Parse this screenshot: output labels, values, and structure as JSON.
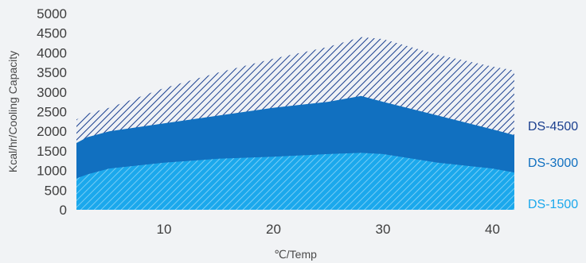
{
  "chart_data": {
    "type": "area",
    "xlabel": "℃/Temp",
    "ylabel": "Kcal/hr/Cooling Capacity",
    "xlim": [
      2,
      42
    ],
    "ylim": [
      0,
      5000
    ],
    "x_ticks": [
      10,
      20,
      30,
      40
    ],
    "y_ticks": [
      0,
      500,
      1000,
      1500,
      2000,
      2500,
      3000,
      3500,
      4000,
      4500,
      5000
    ],
    "grid": false,
    "legend_position": "right",
    "series": [
      {
        "name": "DS-4500",
        "color": "#1a3f8f",
        "fill": "hatched",
        "points": [
          [
            2,
            2300
          ],
          [
            3,
            2450
          ],
          [
            5,
            2600
          ],
          [
            10,
            3100
          ],
          [
            15,
            3500
          ],
          [
            20,
            3850
          ],
          [
            25,
            4150
          ],
          [
            28,
            4400
          ],
          [
            30,
            4350
          ],
          [
            35,
            3950
          ],
          [
            40,
            3650
          ],
          [
            42,
            3550
          ]
        ]
      },
      {
        "name": "DS-3000",
        "color": "#1170c0",
        "fill": "solid",
        "points": [
          [
            2,
            1700
          ],
          [
            3,
            1850
          ],
          [
            5,
            2000
          ],
          [
            10,
            2200
          ],
          [
            15,
            2400
          ],
          [
            20,
            2600
          ],
          [
            25,
            2750
          ],
          [
            28,
            2900
          ],
          [
            30,
            2750
          ],
          [
            35,
            2400
          ],
          [
            40,
            2050
          ],
          [
            42,
            1900
          ]
        ]
      },
      {
        "name": "DS-1500",
        "color": "#1ba8ec",
        "fill": "hatched",
        "points": [
          [
            2,
            800
          ],
          [
            3,
            900
          ],
          [
            5,
            1050
          ],
          [
            10,
            1200
          ],
          [
            15,
            1300
          ],
          [
            20,
            1350
          ],
          [
            25,
            1420
          ],
          [
            28,
            1450
          ],
          [
            30,
            1420
          ],
          [
            35,
            1200
          ],
          [
            40,
            1050
          ],
          [
            42,
            950
          ]
        ]
      }
    ]
  }
}
